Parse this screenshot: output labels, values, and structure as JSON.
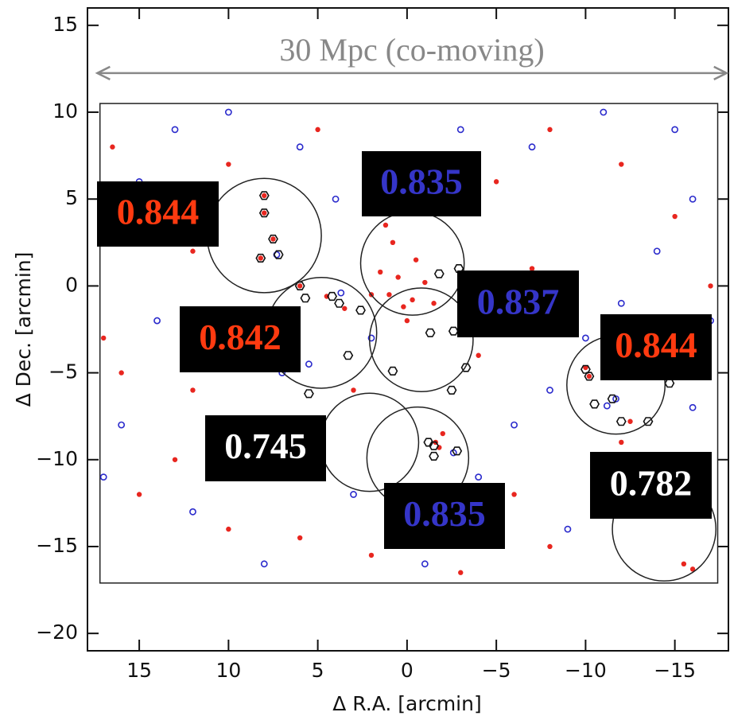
{
  "chart_data": {
    "type": "scatter",
    "xlabel": "Δ R.A. [arcmin]",
    "ylabel": "Δ Dec. [arcmin]",
    "xlim": [
      17.9,
      -18
    ],
    "ylim": [
      -21,
      16
    ],
    "xticks": [
      15,
      10,
      5,
      0,
      {
        "value": -5,
        "label": "−5"
      },
      {
        "value": -10,
        "label": "−10"
      },
      {
        "value": -15,
        "label": "−15"
      }
    ],
    "yticks": [
      15,
      10,
      5,
      0,
      {
        "value": -5,
        "label": "−5"
      },
      {
        "value": -10,
        "label": "−10"
      },
      {
        "value": -15,
        "label": "−15"
      },
      {
        "value": -20,
        "label": "−20"
      }
    ],
    "annotation": {
      "text": "30 Mpc (co-moving)",
      "xlim": [
        17.35,
        -17.9
      ],
      "y": 12.25,
      "color": "#888888"
    },
    "field": {
      "xlim": [
        17.2,
        -17.4
      ],
      "ylim": [
        -17.1,
        10.5
      ]
    },
    "series": [
      {
        "color": "#e8261f",
        "marker": "dot",
        "x": [
          0.5,
          1,
          -0.5,
          0.2,
          1.5,
          -1,
          0.8,
          -1.5,
          2,
          0,
          1.2,
          -0.3,
          8,
          8,
          7.5,
          8.2,
          6,
          4.5,
          3.5,
          16.5,
          14,
          12,
          15,
          10,
          6,
          2,
          -3,
          -8,
          -12,
          -15.5,
          -16,
          -16.8,
          -17,
          -15,
          -12,
          -8,
          -5,
          -2,
          -1.6,
          -1.8,
          -12.5,
          -10,
          -10.2,
          12,
          16,
          17,
          5,
          9,
          13,
          -6,
          3,
          -4,
          -7,
          10
        ],
        "y": [
          0.5,
          -0.5,
          1.5,
          -1.2,
          0.8,
          0.2,
          2.5,
          -1,
          -0.5,
          -2,
          3.5,
          -0.8,
          5.2,
          4.2,
          2.7,
          1.6,
          0,
          -0.6,
          -1.3,
          8,
          3,
          -6,
          -12,
          -14,
          -14.5,
          -15.5,
          -16.5,
          -15,
          -9,
          -16,
          -16.3,
          -13,
          0,
          4,
          7,
          9,
          6,
          -8.5,
          -9,
          -9.3,
          -7.8,
          -4.7,
          -5.2,
          2,
          -5,
          -3,
          9,
          -9,
          -10,
          -12,
          -6,
          -4,
          1,
          7
        ]
      },
      {
        "color": "#2a2acc",
        "marker": "ring",
        "x": [
          15,
          13,
          11,
          9,
          7,
          5,
          3,
          1,
          -2,
          -4,
          -6,
          -8,
          -10,
          -12,
          -14,
          -16,
          -15,
          -11,
          -7,
          -3,
          1,
          4,
          6,
          10,
          14,
          16,
          12,
          8,
          -1,
          -9,
          -13,
          -16,
          -5,
          2,
          7.3,
          3.7,
          -3,
          -11.7,
          -11.2,
          -2.6,
          5.5,
          17,
          17,
          -17
        ],
        "y": [
          6,
          9,
          4,
          -2,
          -5,
          -10,
          -12,
          -14,
          -13,
          -11,
          -8,
          -6,
          -3,
          -1,
          2,
          5,
          9,
          10,
          8,
          9,
          7,
          5,
          8,
          10,
          -2,
          -8,
          -13,
          -16,
          -16,
          -14,
          -11,
          -7,
          -2,
          -3,
          1.8,
          -0.4,
          -2.6,
          -6.5,
          -6.9,
          -9.6,
          -4.5,
          -11,
          3,
          -2
        ]
      },
      {
        "color": "#111111",
        "marker": "hexagon",
        "x": [
          8,
          8,
          7.5,
          8.2,
          7.2,
          6,
          5.7,
          4.2,
          3.8,
          2.6,
          3.3,
          0.8,
          -1.3,
          -2.6,
          -3.3,
          -1.8,
          -2.9,
          -10,
          -10.2,
          -10.5,
          -11.5,
          -12,
          -13.5,
          -1.2,
          -1.5,
          -2.8,
          -1.5,
          -14.7,
          -2.5,
          5.5
        ],
        "y": [
          5.2,
          4.2,
          2.7,
          1.6,
          1.8,
          0,
          -0.7,
          -0.6,
          -1,
          -1.4,
          -4,
          -4.9,
          -2.7,
          -2.6,
          -4.7,
          0.7,
          1,
          -4.8,
          -5.2,
          -6.8,
          -6.5,
          -7.8,
          -7.8,
          -9,
          -9.2,
          -9.5,
          -9.8,
          -5.6,
          -6,
          -6.2
        ]
      }
    ],
    "groups": [
      {
        "x": 8.0,
        "y": 2.9,
        "r": 3.2,
        "label": "0.844",
        "color": "#ff3a10"
      },
      {
        "x": -0.3,
        "y": 1.3,
        "r": 2.9,
        "label": "0.835",
        "color": "#3535c8"
      },
      {
        "x": 4.8,
        "y": -2.7,
        "r": 3.1,
        "label": "0.842",
        "color": "#ff3a10"
      },
      {
        "x": -0.8,
        "y": -3.1,
        "r": 2.9,
        "label": "0.837",
        "color": "#3535c8"
      },
      {
        "x": -11.7,
        "y": -5.7,
        "r": 2.75,
        "label": "0.844",
        "color": "#ff3a10"
      },
      {
        "x": 2.1,
        "y": -9.0,
        "r": 2.75,
        "label": "0.745",
        "color": "#ffffff"
      },
      {
        "x": -0.6,
        "y": -9.9,
        "r": 2.85,
        "label": "0.835",
        "color": "#3535c8"
      },
      {
        "x": -14.4,
        "y": -14.0,
        "r": 2.9,
        "label": "0.782",
        "color": "#ffffff"
      }
    ]
  }
}
